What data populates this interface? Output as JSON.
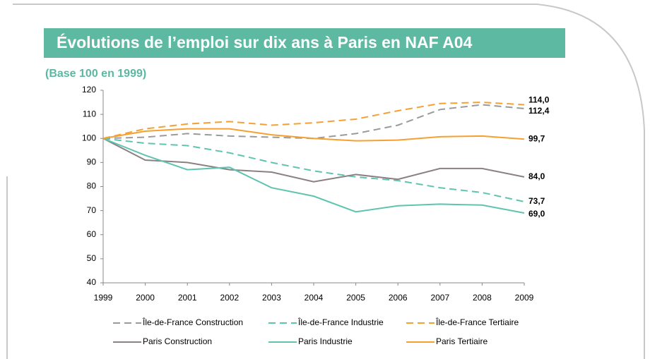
{
  "chart_data": {
    "type": "line",
    "title": "Évolutions de l’emploi sur dix ans à Paris en NAF A04",
    "subtitle": "(Base 100 en 1999)",
    "categories": [
      "1999",
      "2000",
      "2001",
      "2002",
      "2003",
      "2004",
      "2005",
      "2006",
      "2007",
      "2008",
      "2009"
    ],
    "ylim": [
      40,
      120
    ],
    "yticks": [
      40,
      50,
      60,
      70,
      80,
      90,
      100,
      110,
      120
    ],
    "grid": false,
    "series": [
      {
        "name": "Île-de-France Construction",
        "color": "#9a9a9a",
        "dashed": true,
        "values": [
          100,
          100.5,
          102,
          101,
          100.5,
          100,
          102,
          105.5,
          112,
          114,
          112.4
        ],
        "value_labels": [
          null,
          null,
          null,
          null,
          null,
          null,
          null,
          null,
          null,
          null,
          "112,4"
        ]
      },
      {
        "name": "Île-de-France Industrie",
        "color": "#5ec4b0",
        "dashed": true,
        "values": [
          100,
          98,
          97,
          94,
          90,
          86.5,
          84,
          82.5,
          79.5,
          77.5,
          73.7
        ],
        "value_labels": [
          null,
          null,
          null,
          null,
          null,
          null,
          null,
          null,
          null,
          null,
          "73,7"
        ]
      },
      {
        "name": "Île-de-France Tertiaire",
        "color": "#f5a030",
        "dashed": true,
        "values": [
          100,
          104,
          106,
          107,
          105.5,
          106.5,
          108,
          111.5,
          114.5,
          115,
          114.0
        ],
        "value_labels": [
          null,
          null,
          null,
          null,
          null,
          null,
          null,
          null,
          null,
          null,
          "114,0"
        ]
      },
      {
        "name": "Paris Construction",
        "color": "#8c8083",
        "dashed": false,
        "values": [
          100,
          91,
          90,
          87,
          86,
          82,
          85,
          83,
          87.5,
          87.5,
          84.0
        ],
        "value_labels": [
          null,
          null,
          null,
          null,
          null,
          null,
          null,
          null,
          null,
          null,
          "84,0"
        ]
      },
      {
        "name": "Paris Industrie",
        "color": "#5ec4b0",
        "dashed": false,
        "values": [
          100,
          93,
          87,
          88,
          79.5,
          76,
          69.5,
          72,
          72.7,
          72.3,
          69.0
        ],
        "value_labels": [
          null,
          null,
          null,
          null,
          null,
          null,
          null,
          null,
          null,
          null,
          "69,0"
        ]
      },
      {
        "name": "Paris Tertiaire",
        "color": "#f5a030",
        "dashed": false,
        "values": [
          100,
          103,
          104,
          104,
          101.5,
          100,
          99,
          99.3,
          100.7,
          101,
          99.7
        ],
        "value_labels": [
          null,
          null,
          null,
          null,
          null,
          null,
          null,
          null,
          null,
          null,
          "99,7"
        ]
      }
    ]
  }
}
